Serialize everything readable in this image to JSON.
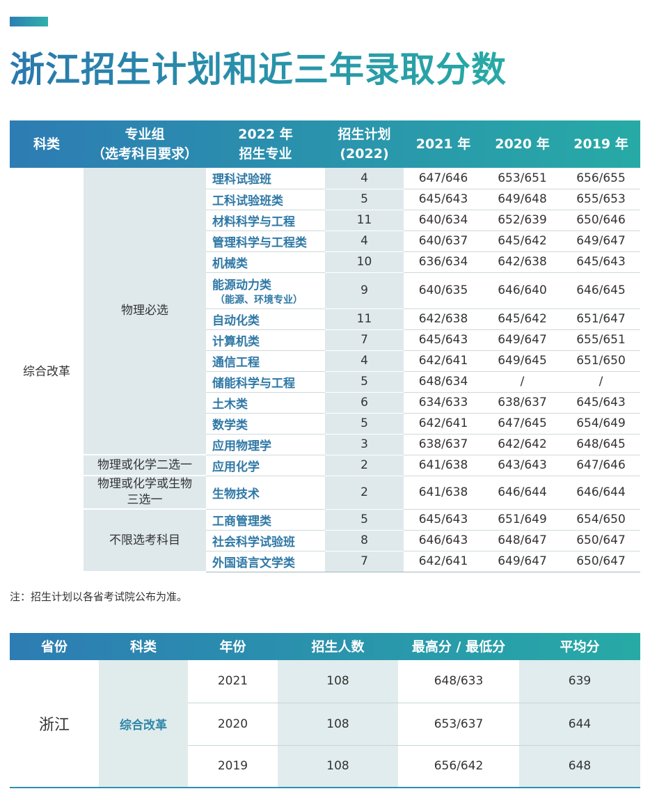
{
  "header": {
    "title": "浙江招生计划和近三年录取分数"
  },
  "table1": {
    "headers": [
      [
        "科类"
      ],
      [
        "专业组",
        "（选考科目要求）"
      ],
      [
        "2022 年",
        "招生专业"
      ],
      [
        "招生计划",
        "(2022)"
      ],
      [
        "2021 年"
      ],
      [
        "2020 年"
      ],
      [
        "2019 年"
      ]
    ],
    "category": "综合改革",
    "groups": [
      {
        "name": [
          "物理必选"
        ],
        "majors": [
          {
            "name": "理科试验班",
            "plan": 4,
            "scores": [
              "647/646",
              "653/651",
              "656/655"
            ]
          },
          {
            "name": "工科试验班类",
            "plan": 5,
            "scores": [
              "645/643",
              "649/648",
              "655/653"
            ]
          },
          {
            "name": "材料科学与工程",
            "plan": 11,
            "scores": [
              "640/634",
              "652/639",
              "650/646"
            ]
          },
          {
            "name": "管理科学与工程类",
            "plan": 4,
            "scores": [
              "640/637",
              "645/642",
              "649/647"
            ]
          },
          {
            "name": "机械类",
            "plan": 10,
            "scores": [
              "636/634",
              "642/638",
              "645/643"
            ]
          },
          {
            "name": "能源动力类",
            "note": "（能源、环境专业）",
            "plan": 9,
            "scores": [
              "640/635",
              "646/640",
              "646/645"
            ]
          },
          {
            "name": "自动化类",
            "plan": 11,
            "scores": [
              "642/638",
              "645/642",
              "651/647"
            ]
          },
          {
            "name": "计算机类",
            "plan": 7,
            "scores": [
              "645/643",
              "649/647",
              "655/651"
            ]
          },
          {
            "name": "通信工程",
            "plan": 4,
            "scores": [
              "642/641",
              "649/645",
              "651/650"
            ]
          },
          {
            "name": "储能科学与工程",
            "plan": 5,
            "scores": [
              "648/634",
              "/",
              "/"
            ]
          },
          {
            "name": "土木类",
            "plan": 6,
            "scores": [
              "634/633",
              "638/637",
              "645/643"
            ]
          },
          {
            "name": "数学类",
            "plan": 5,
            "scores": [
              "642/641",
              "647/645",
              "654/649"
            ]
          },
          {
            "name": "应用物理学",
            "plan": 3,
            "scores": [
              "638/637",
              "642/642",
              "648/645"
            ]
          }
        ]
      },
      {
        "name": [
          "物理或化学二选一"
        ],
        "majors": [
          {
            "name": "应用化学",
            "plan": 2,
            "scores": [
              "641/638",
              "643/643",
              "647/646"
            ]
          }
        ]
      },
      {
        "name": [
          "物理或化学或生物",
          "三选一"
        ],
        "majors": [
          {
            "name": "生物技术",
            "plan": 2,
            "scores": [
              "641/638",
              "646/644",
              "646/644"
            ]
          }
        ]
      },
      {
        "name": [
          "不限选考科目"
        ],
        "majors": [
          {
            "name": "工商管理类",
            "plan": 5,
            "scores": [
              "645/643",
              "651/649",
              "654/650"
            ]
          },
          {
            "name": "社会科学试验班",
            "plan": 8,
            "scores": [
              "646/643",
              "648/647",
              "650/647"
            ]
          },
          {
            "name": "外国语言文学类",
            "plan": 7,
            "scores": [
              "642/641",
              "649/647",
              "650/647"
            ]
          }
        ]
      }
    ]
  },
  "note": "注：招生计划以各省考试院公布为准。",
  "table2": {
    "headers": [
      "省份",
      "科类",
      "年份",
      "招生人数",
      "最高分 / 最低分",
      "平均分"
    ],
    "province": "浙江",
    "category": "综合改革",
    "rows": [
      [
        2021,
        108,
        "648/633",
        639
      ],
      [
        2020,
        108,
        "653/637",
        644
      ],
      [
        2019,
        108,
        "656/642",
        648
      ]
    ]
  }
}
